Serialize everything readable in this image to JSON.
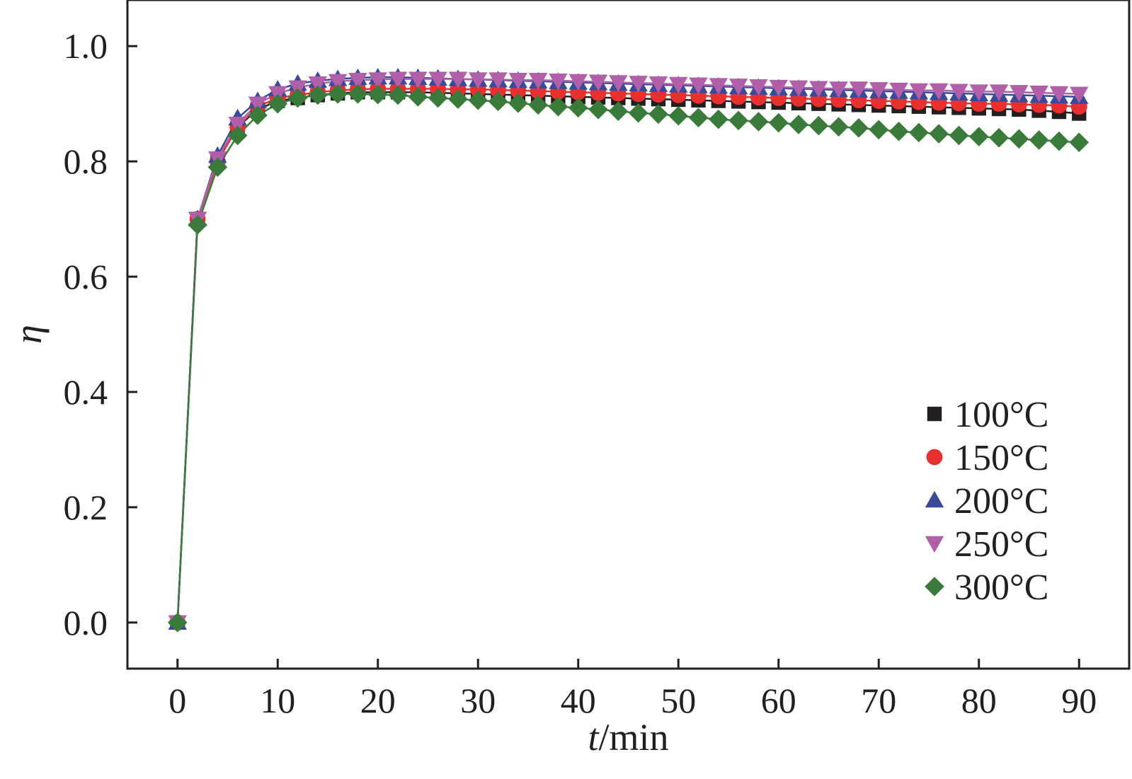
{
  "chart_data": {
    "type": "line",
    "title": "",
    "xlabel_var": "t",
    "xlabel_sep": "/",
    "xlabel_unit": "min",
    "ylabel": "η",
    "xlim": [
      -5,
      95
    ],
    "ylim": [
      -0.08,
      1.08
    ],
    "xticks": [
      0,
      10,
      20,
      30,
      40,
      50,
      60,
      70,
      80,
      90
    ],
    "yticks": [
      0.0,
      0.2,
      0.4,
      0.6,
      0.8,
      1.0
    ],
    "xtick_labels": [
      "0",
      "10",
      "20",
      "30",
      "40",
      "50",
      "60",
      "70",
      "80",
      "90"
    ],
    "ytick_labels": [
      "0.0",
      "0.2",
      "0.4",
      "0.6",
      "0.8",
      "1.0"
    ],
    "grid": false,
    "legend_position": "bottom-right",
    "x": [
      0,
      2,
      4,
      6,
      8,
      10,
      12,
      14,
      16,
      18,
      20,
      22,
      24,
      26,
      28,
      30,
      32,
      34,
      36,
      38,
      40,
      42,
      44,
      46,
      48,
      50,
      52,
      54,
      56,
      58,
      60,
      62,
      64,
      66,
      68,
      70,
      72,
      74,
      76,
      78,
      80,
      82,
      84,
      86,
      88,
      90
    ],
    "series": [
      {
        "name": "100°C",
        "marker": "square",
        "color": "#231f20",
        "values": [
          0,
          0.7,
          0.8,
          0.86,
          0.89,
          0.905,
          0.91,
          0.915,
          0.918,
          0.92,
          0.92,
          0.92,
          0.92,
          0.919,
          0.918,
          0.917,
          0.916,
          0.915,
          0.914,
          0.913,
          0.912,
          0.911,
          0.91,
          0.909,
          0.908,
          0.907,
          0.906,
          0.905,
          0.904,
          0.903,
          0.902,
          0.901,
          0.9,
          0.899,
          0.898,
          0.897,
          0.896,
          0.895,
          0.894,
          0.893,
          0.892,
          0.891,
          0.89,
          0.888,
          0.886,
          0.883
        ]
      },
      {
        "name": "150°C",
        "marker": "circle",
        "color": "#e8312f",
        "values": [
          0,
          0.7,
          0.8,
          0.86,
          0.895,
          0.91,
          0.915,
          0.92,
          0.923,
          0.925,
          0.926,
          0.926,
          0.926,
          0.926,
          0.925,
          0.925,
          0.924,
          0.923,
          0.922,
          0.921,
          0.92,
          0.919,
          0.918,
          0.917,
          0.916,
          0.915,
          0.914,
          0.913,
          0.912,
          0.911,
          0.91,
          0.909,
          0.908,
          0.907,
          0.906,
          0.905,
          0.904,
          0.903,
          0.902,
          0.901,
          0.9,
          0.9,
          0.899,
          0.898,
          0.897,
          0.895
        ]
      },
      {
        "name": "200°C",
        "marker": "triangle-up",
        "color": "#3a4a9a",
        "values": [
          0,
          0.7,
          0.81,
          0.875,
          0.905,
          0.925,
          0.935,
          0.94,
          0.943,
          0.945,
          0.946,
          0.946,
          0.945,
          0.944,
          0.943,
          0.942,
          0.941,
          0.94,
          0.939,
          0.938,
          0.937,
          0.936,
          0.935,
          0.934,
          0.933,
          0.932,
          0.931,
          0.93,
          0.929,
          0.928,
          0.927,
          0.926,
          0.925,
          0.924,
          0.923,
          0.922,
          0.921,
          0.92,
          0.919,
          0.918,
          0.917,
          0.916,
          0.915,
          0.914,
          0.913,
          0.912
        ]
      },
      {
        "name": "250°C",
        "marker": "triangle-down",
        "color": "#b05fa8",
        "values": [
          0,
          0.7,
          0.805,
          0.865,
          0.9,
          0.918,
          0.928,
          0.935,
          0.939,
          0.941,
          0.942,
          0.943,
          0.943,
          0.943,
          0.943,
          0.942,
          0.942,
          0.941,
          0.941,
          0.94,
          0.939,
          0.938,
          0.937,
          0.936,
          0.935,
          0.934,
          0.933,
          0.932,
          0.931,
          0.93,
          0.929,
          0.928,
          0.927,
          0.926,
          0.926,
          0.925,
          0.924,
          0.923,
          0.923,
          0.922,
          0.921,
          0.921,
          0.92,
          0.919,
          0.918,
          0.917
        ]
      },
      {
        "name": "300°C",
        "marker": "diamond",
        "color": "#3a7a3a",
        "values": [
          0,
          0.69,
          0.79,
          0.845,
          0.88,
          0.9,
          0.91,
          0.915,
          0.917,
          0.917,
          0.916,
          0.915,
          0.912,
          0.91,
          0.908,
          0.906,
          0.904,
          0.901,
          0.898,
          0.895,
          0.893,
          0.89,
          0.887,
          0.884,
          0.882,
          0.879,
          0.876,
          0.873,
          0.871,
          0.869,
          0.867,
          0.864,
          0.862,
          0.86,
          0.858,
          0.855,
          0.852,
          0.85,
          0.848,
          0.845,
          0.843,
          0.841,
          0.839,
          0.837,
          0.835,
          0.833
        ]
      }
    ]
  }
}
